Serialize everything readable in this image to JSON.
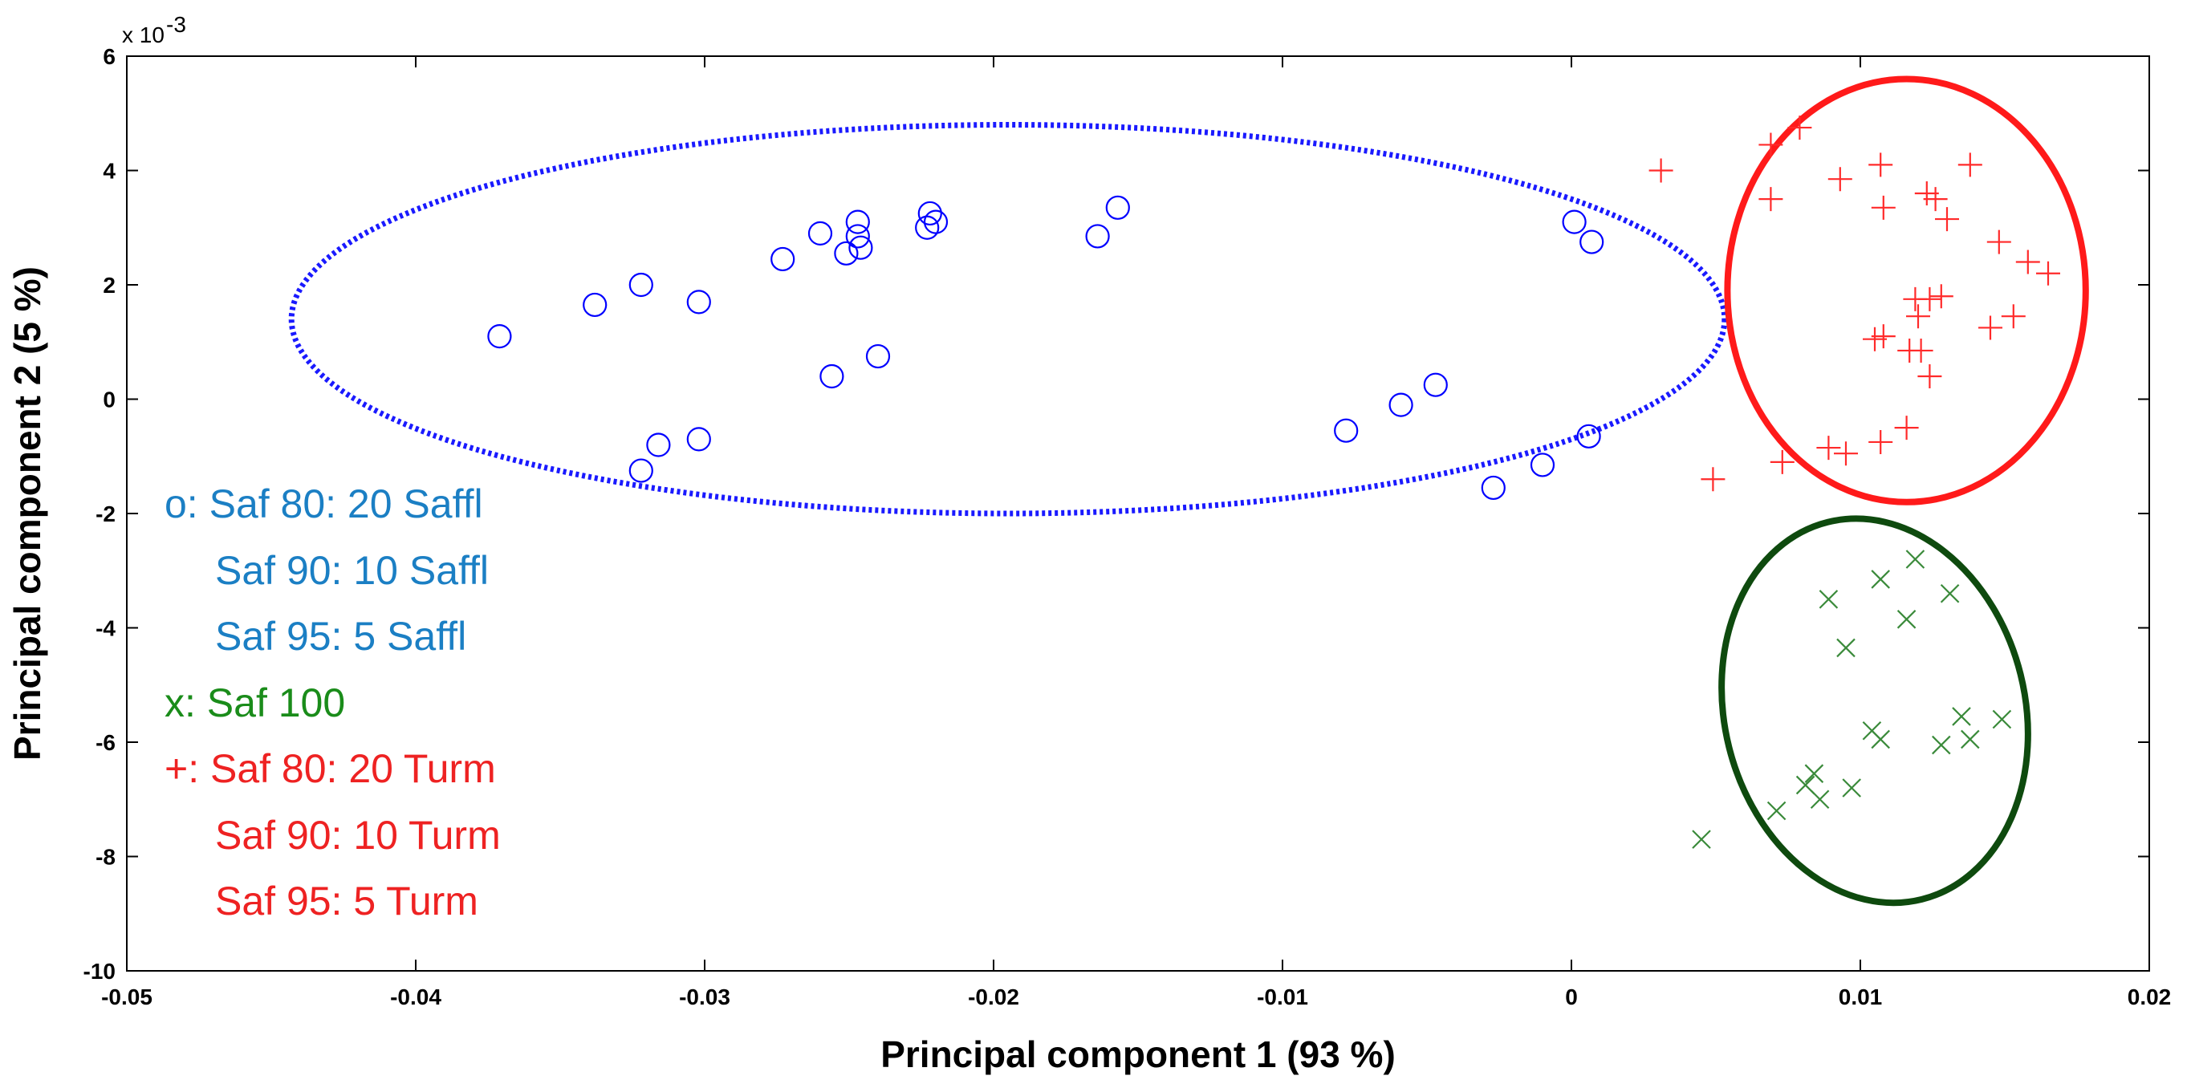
{
  "chart_data": {
    "type": "scatter",
    "title": "",
    "xlabel": "Principal component 1 (93 %)",
    "ylabel": "Principal component 2 (5 %)",
    "xlim": [
      -0.05,
      0.02
    ],
    "ylim": [
      -10,
      6
    ],
    "y_scale_label": "x 10",
    "y_scale_exponent": "-3",
    "x_ticks": [
      -0.05,
      -0.04,
      -0.03,
      -0.02,
      -0.01,
      0,
      0.01,
      0.02
    ],
    "x_tick_labels": [
      "-0.05",
      "-0.04",
      "-0.03",
      "-0.02",
      "-0.01",
      "0",
      "0.01",
      "0.02"
    ],
    "y_ticks": [
      -10,
      -8,
      -6,
      -4,
      -2,
      0,
      2,
      4,
      6
    ],
    "y_tick_labels": [
      "-10",
      "-8",
      "-6",
      "-4",
      "-2",
      "0",
      "2",
      "4",
      "6"
    ],
    "grid": false,
    "legend_placement": "left",
    "legend": [
      {
        "text": "o: Saf 80: 20 Saffl",
        "color": "#1b7fc4"
      },
      {
        "text": "Saf 90: 10 Saffl",
        "color": "#1b7fc4"
      },
      {
        "text": "Saf 95: 5 Saffl",
        "color": "#1b7fc4"
      },
      {
        "text": "x: Saf 100",
        "color": "#1a8c1a"
      },
      {
        "text": "+: Saf 80: 20 Turm",
        "color": "#ee2222"
      },
      {
        "text": "Saf 90: 10 Turm",
        "color": "#ee2222"
      },
      {
        "text": "Saf 95: 5 Turm",
        "color": "#ee2222"
      }
    ],
    "series": [
      {
        "marker": "circle",
        "color": "#0000ff",
        "points": [
          [
            -0.0371,
            1.1
          ],
          [
            -0.0338,
            1.65
          ],
          [
            -0.0322,
            2.0
          ],
          [
            -0.0302,
            1.7
          ],
          [
            -0.0273,
            2.45
          ],
          [
            -0.026,
            2.9
          ],
          [
            -0.0251,
            2.55
          ],
          [
            -0.0247,
            3.1
          ],
          [
            -0.0247,
            2.85
          ],
          [
            -0.0246,
            2.65
          ],
          [
            -0.0223,
            3.0
          ],
          [
            -0.0222,
            3.25
          ],
          [
            -0.022,
            3.1
          ],
          [
            -0.0164,
            2.85
          ],
          [
            -0.0157,
            3.35
          ],
          [
            -0.0256,
            0.4
          ],
          [
            -0.024,
            0.75
          ],
          [
            -0.0322,
            -1.25
          ],
          [
            -0.0316,
            -0.8
          ],
          [
            -0.0302,
            -0.7
          ],
          [
            -0.0078,
            -0.55
          ],
          [
            -0.0059,
            -0.1
          ],
          [
            -0.0047,
            0.25
          ],
          [
            0.0001,
            3.1
          ],
          [
            0.0007,
            2.75
          ],
          [
            0.0006,
            -0.65
          ],
          [
            -0.001,
            -1.15
          ],
          [
            -0.0027,
            -1.55
          ]
        ]
      },
      {
        "marker": "plus",
        "color": "#ff2a2a",
        "points": [
          [
            0.0031,
            4.0
          ],
          [
            0.0069,
            4.45
          ],
          [
            0.0079,
            4.75
          ],
          [
            0.0069,
            3.5
          ],
          [
            0.0093,
            3.85
          ],
          [
            0.0107,
            4.1
          ],
          [
            0.0108,
            3.35
          ],
          [
            0.0123,
            3.6
          ],
          [
            0.0126,
            3.5
          ],
          [
            0.013,
            3.15
          ],
          [
            0.0138,
            4.1
          ],
          [
            0.0148,
            2.75
          ],
          [
            0.0158,
            2.4
          ],
          [
            0.0165,
            2.2
          ],
          [
            0.0119,
            1.75
          ],
          [
            0.0124,
            1.75
          ],
          [
            0.0128,
            1.8
          ],
          [
            0.012,
            1.45
          ],
          [
            0.0153,
            1.45
          ],
          [
            0.0145,
            1.25
          ],
          [
            0.0105,
            1.05
          ],
          [
            0.0108,
            1.1
          ],
          [
            0.0117,
            0.85
          ],
          [
            0.0121,
            0.85
          ],
          [
            0.0124,
            0.4
          ],
          [
            0.0116,
            -0.5
          ],
          [
            0.0107,
            -0.75
          ],
          [
            0.0089,
            -0.85
          ],
          [
            0.0095,
            -0.95
          ],
          [
            0.0073,
            -1.1
          ],
          [
            0.0049,
            -1.4
          ]
        ]
      },
      {
        "marker": "cross",
        "color": "#3a8a3a",
        "points": [
          [
            0.0089,
            -3.5
          ],
          [
            0.0107,
            -3.15
          ],
          [
            0.0119,
            -2.8
          ],
          [
            0.0131,
            -3.4
          ],
          [
            0.0116,
            -3.85
          ],
          [
            0.0095,
            -4.35
          ],
          [
            0.0104,
            -5.8
          ],
          [
            0.0107,
            -5.95
          ],
          [
            0.0128,
            -6.05
          ],
          [
            0.0135,
            -5.55
          ],
          [
            0.0138,
            -5.95
          ],
          [
            0.0149,
            -5.6
          ],
          [
            0.0097,
            -6.8
          ],
          [
            0.0084,
            -6.55
          ],
          [
            0.0081,
            -6.75
          ],
          [
            0.0086,
            -7.0
          ],
          [
            0.0071,
            -7.2
          ],
          [
            0.0045,
            -7.7
          ]
        ]
      }
    ],
    "ellipses": [
      {
        "color": "#1a1aff",
        "style": "dotted",
        "cx": -0.0195,
        "cy": 1.4,
        "rx": 0.0248,
        "ry": 3.4,
        "angle_deg": 0
      },
      {
        "color": "#ff1a1a",
        "style": "solid",
        "cx": 0.0116,
        "cy": 1.9,
        "rx": 0.0062,
        "ry": 3.7,
        "angle_deg": 0
      },
      {
        "color": "#0e4a0e",
        "style": "solid",
        "cx": 0.0105,
        "cy": -5.45,
        "rx": 0.0052,
        "ry": 3.4,
        "angle_deg": 14
      }
    ]
  }
}
